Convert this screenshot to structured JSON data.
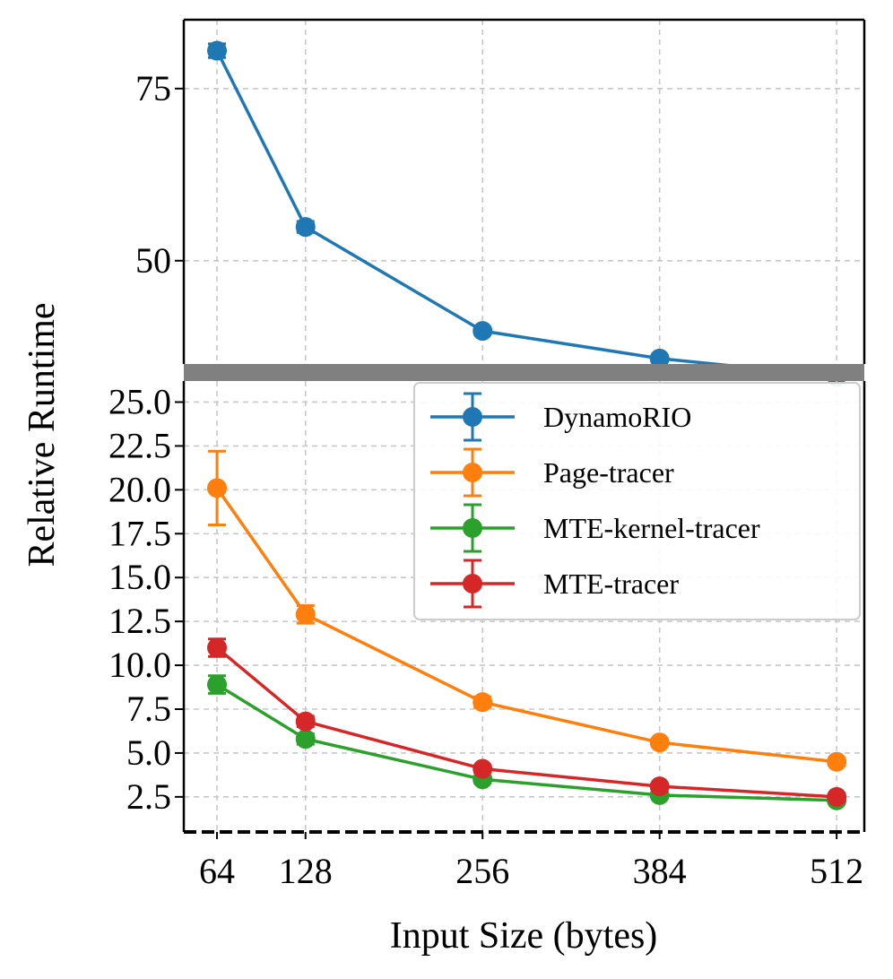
{
  "chart_data": {
    "type": "line",
    "broken_axis": true,
    "x": [
      64,
      128,
      256,
      384,
      512
    ],
    "xticks": [
      "64",
      "128",
      "256",
      "384",
      "512"
    ],
    "xlabel": "Input Size (bytes)",
    "ylabel": "Relative Runtime",
    "top_panel": {
      "ylim": [
        35,
        85
      ],
      "yticks": [
        "50",
        "75"
      ],
      "yticks_values": [
        50,
        75
      ]
    },
    "bottom_panel": {
      "ylim": [
        0.5,
        26.2
      ],
      "yticks": [
        "2.5",
        "5.0",
        "7.5",
        "10.0",
        "12.5",
        "15.0",
        "17.5",
        "20.0",
        "22.5",
        "25.0"
      ],
      "yticks_values": [
        2.5,
        5.0,
        7.5,
        10.0,
        12.5,
        15.0,
        17.5,
        20.0,
        22.5,
        25.0
      ]
    },
    "series": [
      {
        "name": "DynamoRIO",
        "color": "#1f77b4",
        "panel": "top",
        "values": [
          80.5,
          54.9,
          39.8,
          35.8,
          33.2
        ],
        "errors": [
          1.0,
          0.8,
          0.5,
          0.4,
          0.4
        ]
      },
      {
        "name": "Page-tracer",
        "color": "#ff7f0e",
        "panel": "bottom",
        "values": [
          20.1,
          12.9,
          7.9,
          5.6,
          4.5
        ],
        "errors": [
          2.1,
          0.5,
          0.3,
          0.2,
          0.2
        ]
      },
      {
        "name": "MTE-kernel-tracer",
        "color": "#2ca02c",
        "panel": "bottom",
        "values": [
          8.9,
          5.8,
          3.5,
          2.6,
          2.3
        ],
        "errors": [
          0.5,
          0.3,
          0.2,
          0.1,
          0.1
        ]
      },
      {
        "name": "MTE-tracer",
        "color": "#d62728",
        "panel": "bottom",
        "values": [
          11.0,
          6.8,
          4.1,
          3.1,
          2.5
        ],
        "errors": [
          0.5,
          0.3,
          0.2,
          0.1,
          0.1
        ]
      }
    ],
    "legend_position": "upper-right",
    "grid": true
  }
}
